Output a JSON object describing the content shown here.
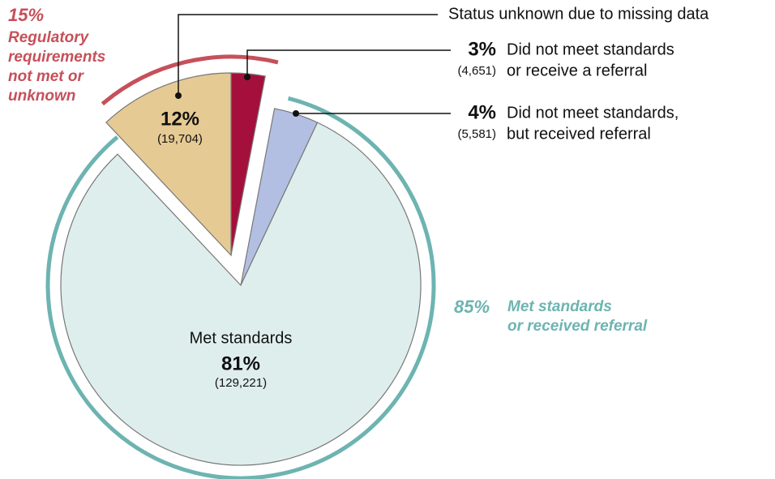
{
  "chart_data": {
    "type": "pie",
    "slices": [
      {
        "name": [
          "Did not meet standards",
          "or receive a referral"
        ],
        "color": "#a50f3c",
        "value": 3,
        "value_label": "3%",
        "count_label": "(4,651)"
      },
      {
        "name": [
          "Did not meet standards,",
          "but received referral"
        ],
        "color": "#b3bfe2",
        "value": 4,
        "value_label": "4%",
        "count_label": "(5,581)"
      },
      {
        "name": [
          "Met standards"
        ],
        "color": "#deeeec",
        "value": 81,
        "value_label": "81%",
        "count_label": "(129,221)"
      },
      {
        "name": [
          "Status unknown due to missing data"
        ],
        "color": "#e6ca94",
        "value": 12,
        "value_label": "12%",
        "count_label": "(19,704)"
      }
    ],
    "groups": [
      {
        "name": [
          "Regulatory",
          "requirements",
          "not met or",
          "unknown"
        ],
        "color": "#c6505a",
        "value": 15,
        "value_label": "15%"
      },
      {
        "name": [
          "Met standards",
          "or received referral"
        ],
        "color": "#6db4b1",
        "value": 85,
        "value_label": "85%"
      }
    ]
  }
}
